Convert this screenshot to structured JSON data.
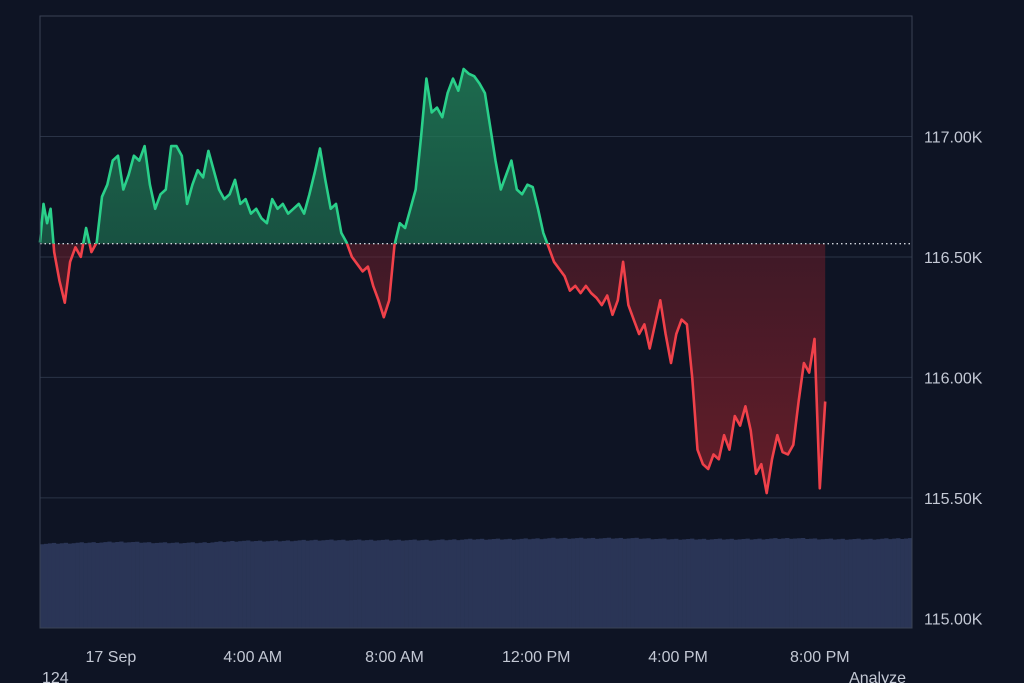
{
  "chart_data": {
    "type": "area",
    "baseline": 116555,
    "colors": {
      "background": "#0e1424",
      "grid": "#2a3346",
      "frame": "#3a4254",
      "up_line": "#2ad08a",
      "up_fill": "#1f7a55",
      "down_line": "#f0414a",
      "down_fill": "#7a1f2a",
      "volume": "#2a3556",
      "tick_text": "#c3c8d4"
    },
    "y_axis": {
      "ticks": [
        "117.00K",
        "116.50K",
        "116.00K",
        "115.50K",
        "115.00K"
      ],
      "tick_values": [
        117000,
        116500,
        116000,
        115500,
        115000
      ],
      "range": [
        114960,
        117500
      ]
    },
    "x_axis": {
      "ticks": [
        "17 Sep",
        "4:00 AM",
        "8:00 AM",
        "12:00 PM",
        "4:00 PM",
        "8:00 PM"
      ],
      "tick_hours": [
        0,
        4,
        8,
        12,
        16,
        20
      ],
      "range_hours": [
        -2.0,
        22.6
      ]
    },
    "series": [
      {
        "values": [
          [
            -2.0,
            116560
          ],
          [
            -1.9,
            116720
          ],
          [
            -1.8,
            116640
          ],
          [
            -1.7,
            116700
          ],
          [
            -1.6,
            116520
          ],
          [
            -1.45,
            116400
          ],
          [
            -1.3,
            116310
          ],
          [
            -1.15,
            116480
          ],
          [
            -1.0,
            116540
          ],
          [
            -0.85,
            116500
          ],
          [
            -0.7,
            116620
          ],
          [
            -0.55,
            116520
          ],
          [
            -0.4,
            116560
          ],
          [
            -0.25,
            116750
          ],
          [
            -0.1,
            116800
          ],
          [
            0.05,
            116900
          ],
          [
            0.2,
            116920
          ],
          [
            0.35,
            116780
          ],
          [
            0.5,
            116840
          ],
          [
            0.65,
            116920
          ],
          [
            0.8,
            116900
          ],
          [
            0.95,
            116960
          ],
          [
            1.1,
            116800
          ],
          [
            1.25,
            116700
          ],
          [
            1.4,
            116760
          ],
          [
            1.55,
            116780
          ],
          [
            1.7,
            116960
          ],
          [
            1.85,
            116960
          ],
          [
            2.0,
            116920
          ],
          [
            2.15,
            116720
          ],
          [
            2.3,
            116800
          ],
          [
            2.45,
            116860
          ],
          [
            2.6,
            116830
          ],
          [
            2.75,
            116940
          ],
          [
            2.9,
            116860
          ],
          [
            3.05,
            116780
          ],
          [
            3.2,
            116740
          ],
          [
            3.35,
            116760
          ],
          [
            3.5,
            116820
          ],
          [
            3.65,
            116720
          ],
          [
            3.8,
            116740
          ],
          [
            3.95,
            116680
          ],
          [
            4.1,
            116700
          ],
          [
            4.25,
            116660
          ],
          [
            4.4,
            116640
          ],
          [
            4.55,
            116740
          ],
          [
            4.7,
            116700
          ],
          [
            4.85,
            116720
          ],
          [
            5.0,
            116680
          ],
          [
            5.15,
            116700
          ],
          [
            5.3,
            116720
          ],
          [
            5.45,
            116680
          ],
          [
            5.6,
            116760
          ],
          [
            5.75,
            116850
          ],
          [
            5.9,
            116950
          ],
          [
            6.05,
            116820
          ],
          [
            6.2,
            116700
          ],
          [
            6.35,
            116720
          ],
          [
            6.5,
            116600
          ],
          [
            6.65,
            116560
          ],
          [
            6.8,
            116500
          ],
          [
            6.95,
            116470
          ],
          [
            7.1,
            116440
          ],
          [
            7.25,
            116460
          ],
          [
            7.4,
            116380
          ],
          [
            7.55,
            116320
          ],
          [
            7.7,
            116250
          ],
          [
            7.85,
            116320
          ],
          [
            8.0,
            116550
          ],
          [
            8.15,
            116640
          ],
          [
            8.3,
            116620
          ],
          [
            8.45,
            116700
          ],
          [
            8.6,
            116780
          ],
          [
            8.75,
            117000
          ],
          [
            8.9,
            117240
          ],
          [
            9.05,
            117100
          ],
          [
            9.2,
            117120
          ],
          [
            9.35,
            117080
          ],
          [
            9.5,
            117180
          ],
          [
            9.65,
            117240
          ],
          [
            9.8,
            117190
          ],
          [
            9.95,
            117280
          ],
          [
            10.1,
            117260
          ],
          [
            10.25,
            117250
          ],
          [
            10.4,
            117220
          ],
          [
            10.55,
            117180
          ],
          [
            10.7,
            117040
          ],
          [
            10.85,
            116900
          ],
          [
            11.0,
            116780
          ],
          [
            11.15,
            116840
          ],
          [
            11.3,
            116900
          ],
          [
            11.45,
            116780
          ],
          [
            11.6,
            116760
          ],
          [
            11.75,
            116800
          ],
          [
            11.9,
            116790
          ],
          [
            12.05,
            116700
          ],
          [
            12.2,
            116600
          ],
          [
            12.35,
            116540
          ],
          [
            12.5,
            116480
          ],
          [
            12.65,
            116450
          ],
          [
            12.8,
            116420
          ],
          [
            12.95,
            116360
          ],
          [
            13.1,
            116380
          ],
          [
            13.25,
            116350
          ],
          [
            13.4,
            116380
          ],
          [
            13.55,
            116350
          ],
          [
            13.7,
            116330
          ],
          [
            13.85,
            116300
          ],
          [
            14.0,
            116340
          ],
          [
            14.15,
            116260
          ],
          [
            14.3,
            116320
          ],
          [
            14.45,
            116480
          ],
          [
            14.6,
            116300
          ],
          [
            14.75,
            116240
          ],
          [
            14.9,
            116180
          ],
          [
            15.05,
            116220
          ],
          [
            15.2,
            116120
          ],
          [
            15.35,
            116220
          ],
          [
            15.5,
            116320
          ],
          [
            15.65,
            116180
          ],
          [
            15.8,
            116060
          ],
          [
            15.95,
            116180
          ],
          [
            16.1,
            116240
          ],
          [
            16.25,
            116220
          ],
          [
            16.4,
            116000
          ],
          [
            16.55,
            115700
          ],
          [
            16.7,
            115640
          ],
          [
            16.85,
            115620
          ],
          [
            17.0,
            115680
          ],
          [
            17.15,
            115660
          ],
          [
            17.3,
            115760
          ],
          [
            17.45,
            115700
          ],
          [
            17.6,
            115840
          ],
          [
            17.75,
            115800
          ],
          [
            17.9,
            115880
          ],
          [
            18.05,
            115780
          ],
          [
            18.2,
            115600
          ],
          [
            18.35,
            115640
          ],
          [
            18.5,
            115520
          ],
          [
            18.65,
            115660
          ],
          [
            18.8,
            115760
          ],
          [
            18.95,
            115690
          ],
          [
            19.1,
            115680
          ],
          [
            19.25,
            115720
          ],
          [
            19.4,
            115900
          ],
          [
            19.55,
            116060
          ],
          [
            19.7,
            116020
          ],
          [
            19.85,
            116160
          ],
          [
            20.0,
            115540
          ],
          [
            20.15,
            115900
          ]
        ]
      }
    ],
    "volume": {
      "heights": [
        0.92,
        0.93,
        0.94,
        0.93,
        0.93,
        0.95,
        0.95,
        0.96,
        0.96,
        0.96,
        0.96,
        0.97,
        0.97,
        0.98,
        0.98,
        0.98,
        0.97,
        0.97,
        0.97,
        0.98,
        0.97,
        0.97,
        0.98
      ],
      "bars_count": 220
    },
    "footer": {
      "left_text": "124",
      "right_text": "Analyze"
    }
  }
}
